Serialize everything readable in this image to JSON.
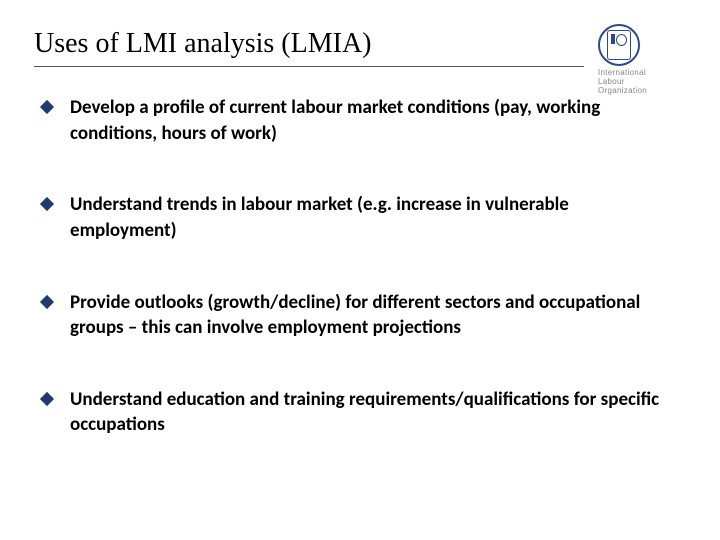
{
  "title": "Uses of LMI analysis (LMIA)",
  "logo": {
    "line1": "International",
    "line2": "Labour",
    "line3": "Organization",
    "brand_color": "#2a4a8a"
  },
  "bullets": [
    {
      "pre": "Develop a ",
      "bold": "profile ",
      "post": "of current labour market conditions (pay, working conditions, hours of work)"
    },
    {
      "pre": "Understand ",
      "bold": "trends ",
      "post": "in labour market (e.g. increase in vulnerable employment)"
    },
    {
      "pre": "Provide ",
      "bold": "outlooks ",
      "post": "(growth/decline) for different sectors and occupational groups – this can involve employment projections"
    },
    {
      "pre": "Understand education and training ",
      "bold": "requirements/qualifications ",
      "post": "for specific occupations"
    }
  ],
  "style": {
    "diamond_color": "#1f3a6e",
    "title_fontsize": 28,
    "body_fontsize": 19,
    "background": "#ffffff"
  }
}
